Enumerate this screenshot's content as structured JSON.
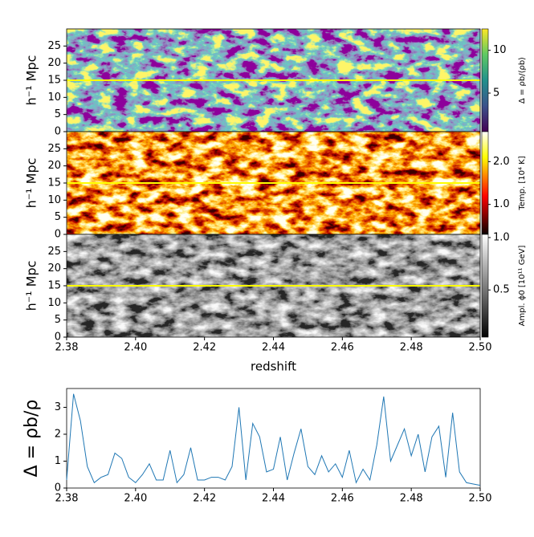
{
  "chart_data": [
    {
      "type": "heatmap",
      "ylabel": "h⁻¹ Mpc",
      "ylim": [
        0,
        30
      ],
      "yticks": [
        0,
        5,
        10,
        15,
        20,
        25
      ],
      "hline": 15,
      "hline_color": "#ffff00",
      "colormap": "viridis",
      "colorbar": {
        "label": "Δ = ρb/⟨ρb⟩",
        "lim": [
          0.5,
          12.5
        ],
        "ticks": [
          5,
          10
        ]
      }
    },
    {
      "type": "heatmap",
      "ylabel": "h⁻¹ Mpc",
      "ylim": [
        0,
        30
      ],
      "yticks": [
        0,
        5,
        10,
        15,
        20,
        25
      ],
      "hline": 15,
      "hline_color": "#ffff00",
      "colormap": "hot",
      "colorbar": {
        "label": "Temp. [10⁴ K]",
        "lim": [
          0.3,
          2.7
        ],
        "ticks": [
          {
            "value": 1,
            "label": "1.0"
          },
          {
            "value": 2,
            "label": "2.0"
          }
        ]
      }
    },
    {
      "type": "heatmap",
      "ylabel": "h⁻¹ Mpc",
      "ylim": [
        0,
        30
      ],
      "yticks": [
        0,
        5,
        10,
        15,
        20,
        25
      ],
      "hline": 15,
      "hline_color": "#ffff00",
      "colormap": "gray",
      "colorbar": {
        "label": "Ampl. ϕ0 [10¹¹ GeV]",
        "lim": [
          0.05,
          1.03
        ],
        "ticks": [
          0.5,
          {
            "value": 1,
            "label": "1.0"
          }
        ]
      },
      "xlabel": "redshift",
      "xlim": [
        2.38,
        2.5
      ],
      "xticks": [
        2.38,
        {
          "value": 2.4,
          "label": "2.40"
        },
        2.42,
        2.44,
        2.46,
        2.48,
        {
          "value": 2.5,
          "label": "2.50"
        }
      ]
    },
    {
      "type": "line",
      "ylabel": "Δ = ρb/ρ",
      "color": "#1f77b4",
      "xlim": [
        2.38,
        2.5
      ],
      "xticks": [
        2.38,
        {
          "value": 2.4,
          "label": "2.40"
        },
        2.42,
        2.44,
        2.46,
        2.48,
        {
          "value": 2.5,
          "label": "2.50"
        }
      ],
      "ylim": [
        0,
        3.7
      ],
      "yticks": [
        0,
        1,
        2,
        3
      ],
      "x": [
        2.38,
        2.382,
        2.384,
        2.386,
        2.388,
        2.39,
        2.392,
        2.394,
        2.396,
        2.398,
        2.4,
        2.402,
        2.404,
        2.406,
        2.408,
        2.41,
        2.412,
        2.414,
        2.416,
        2.418,
        2.42,
        2.422,
        2.424,
        2.426,
        2.428,
        2.43,
        2.432,
        2.434,
        2.436,
        2.438,
        2.44,
        2.442,
        2.444,
        2.446,
        2.448,
        2.45,
        2.452,
        2.454,
        2.456,
        2.458,
        2.46,
        2.462,
        2.464,
        2.466,
        2.468,
        2.47,
        2.472,
        2.474,
        2.476,
        2.478,
        2.48,
        2.482,
        2.484,
        2.486,
        2.488,
        2.49,
        2.492,
        2.494,
        2.496,
        2.498,
        2.5
      ],
      "values": [
        0.3,
        3.5,
        2.5,
        0.8,
        0.2,
        0.4,
        0.5,
        1.3,
        1.1,
        0.4,
        0.2,
        0.5,
        0.9,
        0.3,
        0.3,
        1.4,
        0.2,
        0.5,
        1.5,
        0.3,
        0.3,
        0.4,
        0.4,
        0.3,
        0.8,
        3.0,
        0.3,
        2.4,
        1.9,
        0.6,
        0.7,
        1.9,
        0.3,
        1.3,
        2.2,
        0.8,
        0.5,
        1.2,
        0.6,
        0.9,
        0.4,
        1.4,
        0.2,
        0.7,
        0.3,
        1.6,
        3.4,
        1.0,
        1.6,
        2.2,
        1.2,
        2.0,
        0.6,
        1.9,
        2.3,
        0.4,
        2.8,
        0.6,
        0.2,
        0.15,
        0.1
      ]
    }
  ]
}
